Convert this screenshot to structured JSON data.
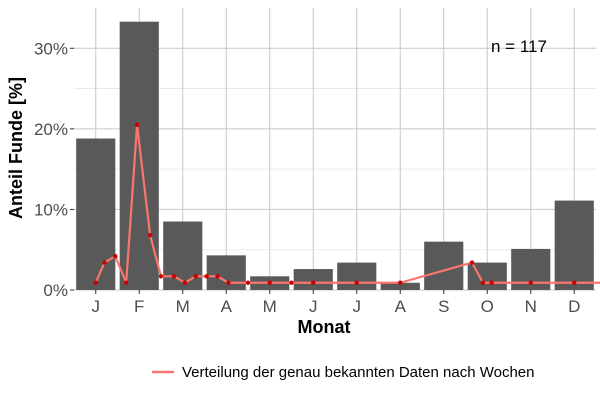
{
  "chart_data": {
    "type": "bar",
    "categories": [
      "J",
      "F",
      "M",
      "A",
      "M",
      "J",
      "J",
      "A",
      "S",
      "O",
      "N",
      "D"
    ],
    "values": [
      18.8,
      33.3,
      8.5,
      4.3,
      1.7,
      2.6,
      3.4,
      0.9,
      6.0,
      3.4,
      5.1,
      11.1
    ],
    "ylim": [
      0,
      35
    ],
    "y_ticks": [
      0,
      10,
      20,
      30
    ],
    "y_tick_labels": [
      "0%",
      "10%",
      "20%",
      "30%"
    ],
    "xlabel": "Monat",
    "ylabel": "Anteil Funde [%]",
    "annotation": "n = 117",
    "grid": true,
    "legend_position": "bottom",
    "colors": {
      "bar": "#595959",
      "line": "#f8766d",
      "point": "#cc0000",
      "grid": "#c8c8c8"
    },
    "series": [
      {
        "name": "Verteilung der genau bekannten Daten nach Wochen",
        "type": "line",
        "x": [
          0.5,
          0.7,
          0.95,
          1.2,
          1.45,
          1.75,
          2.0,
          2.3,
          2.55,
          2.8,
          3.05,
          3.3,
          3.55,
          4.0,
          4.5,
          5.0,
          5.5,
          6.5,
          7.5,
          9.15,
          9.4,
          9.6,
          10.5,
          11.5,
          12.5
        ],
        "values": [
          0.9,
          3.4,
          4.2,
          0.9,
          20.5,
          6.8,
          1.7,
          1.7,
          0.9,
          1.7,
          1.7,
          1.7,
          0.9,
          0.9,
          0.9,
          0.9,
          0.9,
          0.9,
          0.9,
          3.4,
          0.9,
          0.9,
          0.9,
          0.9,
          0.9
        ]
      }
    ]
  }
}
